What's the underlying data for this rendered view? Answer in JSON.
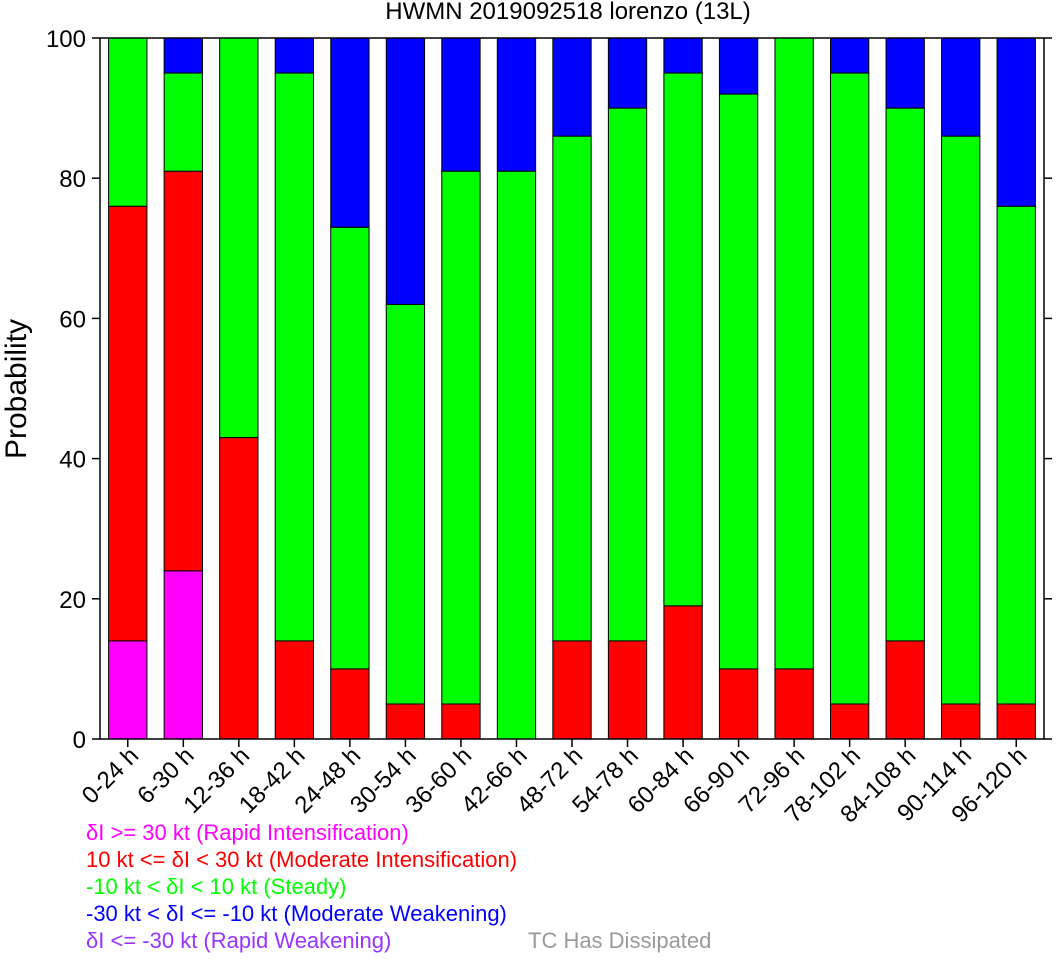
{
  "chart_data": {
    "type": "bar",
    "stacked": true,
    "title": "HWMN 2019092518 lorenzo (13L)",
    "xlabel": "",
    "ylabel": "Probability",
    "ylim": [
      0,
      100
    ],
    "yticks": [
      0,
      20,
      40,
      60,
      80,
      100
    ],
    "grid": false,
    "categories": [
      "0-24 h",
      "6-30 h",
      "12-36 h",
      "18-42 h",
      "24-48 h",
      "30-54 h",
      "36-60 h",
      "42-66 h",
      "48-72 h",
      "54-78 h",
      "60-84 h",
      "66-90 h",
      "72-96 h",
      "78-102 h",
      "84-108 h",
      "90-114 h",
      "96-120 h"
    ],
    "series": [
      {
        "name": "δI >= 30 kt (Rapid Intensification)",
        "color": "#ff00ff",
        "values": [
          14,
          24,
          0,
          0,
          0,
          0,
          0,
          0,
          0,
          0,
          0,
          0,
          0,
          0,
          0,
          0,
          0
        ]
      },
      {
        "name": "10 kt <= δI < 30 kt (Moderate Intensification)",
        "color": "#ff0000",
        "values": [
          62,
          57,
          43,
          14,
          10,
          5,
          5,
          0,
          14,
          14,
          19,
          10,
          10,
          5,
          14,
          5,
          5
        ]
      },
      {
        "name": "-10 kt < δI < 10 kt (Steady)",
        "color": "#00ff00",
        "values": [
          24,
          14,
          57,
          81,
          63,
          57,
          76,
          81,
          72,
          76,
          76,
          82,
          90,
          90,
          76,
          81,
          71
        ]
      },
      {
        "name": "-30 kt < δI <= -10 kt (Moderate Weakening)",
        "color": "#0000ff",
        "values": [
          0,
          5,
          0,
          5,
          27,
          38,
          19,
          19,
          14,
          10,
          5,
          8,
          0,
          5,
          10,
          14,
          24
        ]
      },
      {
        "name": "δI <= -30 kt (Rapid Weakening)",
        "color": "#9933ff",
        "values": [
          0,
          0,
          0,
          0,
          0,
          0,
          0,
          0,
          0,
          0,
          0,
          0,
          0,
          0,
          0,
          0,
          0
        ]
      }
    ],
    "extra_legend": {
      "name": "TC Has Dissipated",
      "color": "#999999"
    }
  }
}
